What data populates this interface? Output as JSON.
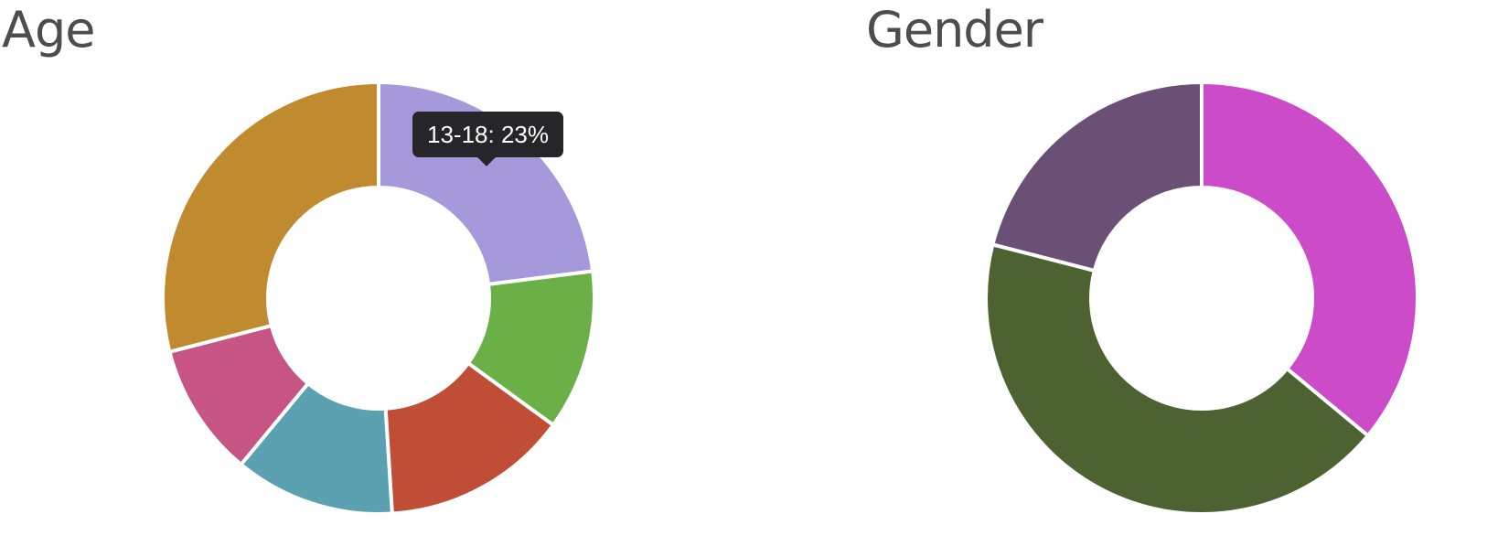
{
  "chart_data": [
    {
      "type": "pie",
      "title": "Age",
      "slices": [
        {
          "value": 23,
          "color": "#a599dc"
        },
        {
          "value": 12,
          "color": "#6ab047"
        },
        {
          "value": 14,
          "color": "#c04d36"
        },
        {
          "value": 12,
          "color": "#5ba1b1"
        },
        {
          "value": 10,
          "color": "#c65584"
        },
        {
          "value": 29,
          "color": "#c08b2f"
        }
      ],
      "donut": true,
      "tooltip": {
        "text": "13-18: 23%",
        "slice_index": 0
      }
    },
    {
      "type": "pie",
      "title": "Gender",
      "slices": [
        {
          "value": 36,
          "color": "#cb4bc9"
        },
        {
          "value": 43,
          "color": "#4c6331"
        },
        {
          "value": 21,
          "color": "#6a5074"
        }
      ],
      "donut": true
    }
  ]
}
